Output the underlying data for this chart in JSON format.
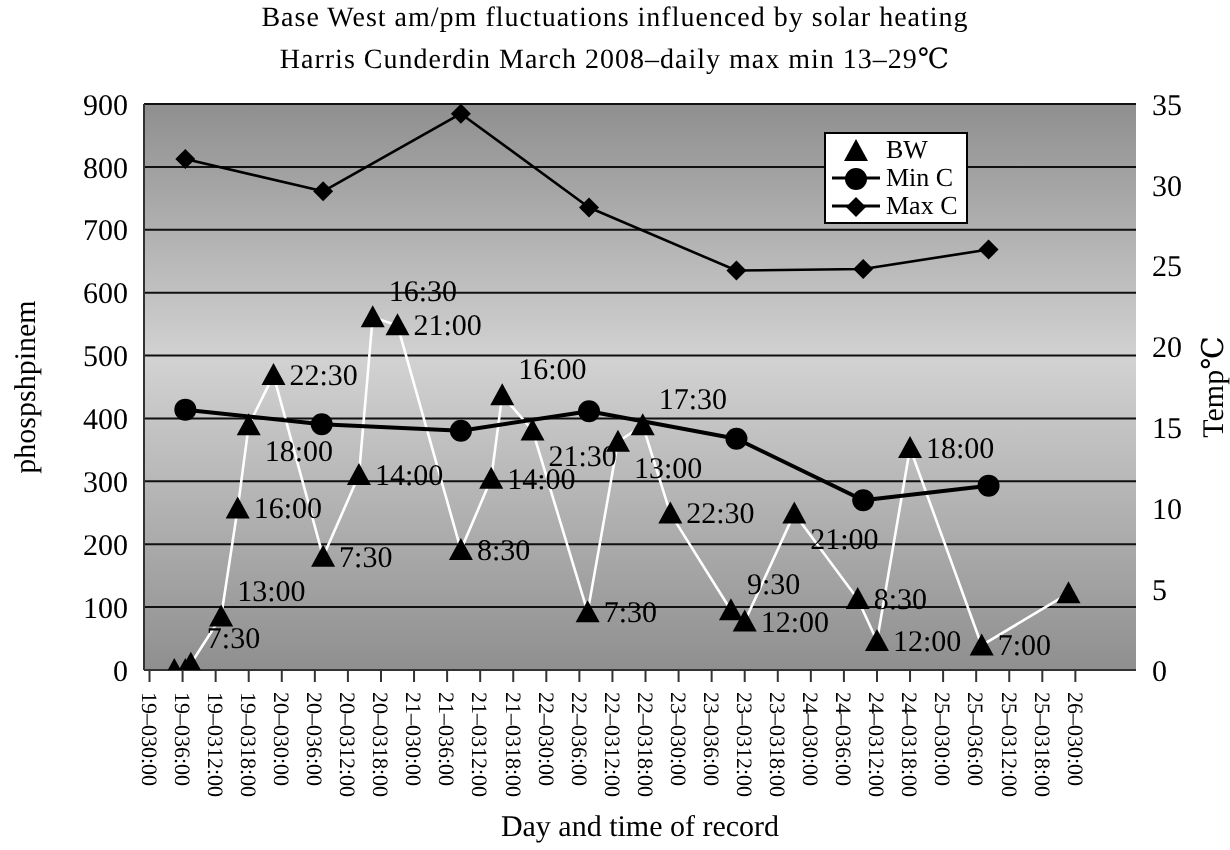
{
  "chart_data": {
    "type": "line",
    "title": "Base West am/pm fluctuations influenced by solar heating",
    "subtitle": "Harris Cunderdin March 2008–daily max min 13–29℃",
    "xlabel": "Day and time of record",
    "ylabel": "phospshpinem",
    "y2label": "Temp℃",
    "xlim": [
      "2008-03-18T23:00",
      "2008-03-26T11:00"
    ],
    "xticks": [
      {
        "value": "2008-03-19T00:00",
        "label": "19–030:00"
      },
      {
        "value": "2008-03-19T06:00",
        "label": "19–036:00"
      },
      {
        "value": "2008-03-19T12:00",
        "label": "19–0312:00"
      },
      {
        "value": "2008-03-19T18:00",
        "label": "19–0318:00"
      },
      {
        "value": "2008-03-20T00:00",
        "label": "20–030:00"
      },
      {
        "value": "2008-03-20T06:00",
        "label": "20–036:00"
      },
      {
        "value": "2008-03-20T12:00",
        "label": "20–0312:00"
      },
      {
        "value": "2008-03-20T18:00",
        "label": "20–0318:00"
      },
      {
        "value": "2008-03-21T00:00",
        "label": "21–030:00"
      },
      {
        "value": "2008-03-21T06:00",
        "label": "21–036:00"
      },
      {
        "value": "2008-03-21T12:00",
        "label": "21–0312:00"
      },
      {
        "value": "2008-03-21T18:00",
        "label": "21–0318:00"
      },
      {
        "value": "2008-03-22T00:00",
        "label": "22–030:00"
      },
      {
        "value": "2008-03-22T06:00",
        "label": "22–036:00"
      },
      {
        "value": "2008-03-22T12:00",
        "label": "22–0312:00"
      },
      {
        "value": "2008-03-22T18:00",
        "label": "22–0318:00"
      },
      {
        "value": "2008-03-23T00:00",
        "label": "23–030:00"
      },
      {
        "value": "2008-03-23T06:00",
        "label": "23–036:00"
      },
      {
        "value": "2008-03-23T12:00",
        "label": "23–0312:00"
      },
      {
        "value": "2008-03-23T18:00",
        "label": "23–0318:00"
      },
      {
        "value": "2008-03-24T00:00",
        "label": "24–030:00"
      },
      {
        "value": "2008-03-24T06:00",
        "label": "24–036:00"
      },
      {
        "value": "2008-03-24T12:00",
        "label": "24–0312:00"
      },
      {
        "value": "2008-03-24T18:00",
        "label": "24–0318:00"
      },
      {
        "value": "2008-03-25T00:00",
        "label": "25–030:00"
      },
      {
        "value": "2008-03-25T06:00",
        "label": "25–036:00"
      },
      {
        "value": "2008-03-25T12:00",
        "label": "25–0312:00"
      },
      {
        "value": "2008-03-25T18:00",
        "label": "25–0318:00"
      },
      {
        "value": "2008-03-26T00:00",
        "label": "26–030:00"
      }
    ],
    "ylim": [
      0,
      900
    ],
    "yticks": [
      0,
      100,
      200,
      300,
      400,
      500,
      600,
      700,
      800,
      900
    ],
    "y2lim": [
      0,
      35
    ],
    "y2ticks": [
      0,
      5,
      10,
      15,
      20,
      25,
      30,
      35
    ],
    "grid": "y",
    "legend": "top right",
    "series": [
      {
        "name": "BW",
        "color": "#ffffff",
        "marker": "triangle",
        "x": [
          "2008-03-19T04:30",
          "2008-03-19T06:30",
          "2008-03-19T07:30",
          "2008-03-19T13:00",
          "2008-03-19T16:00",
          "2008-03-19T18:00",
          "2008-03-19T22:30",
          "2008-03-20T07:30",
          "2008-03-20T14:00",
          "2008-03-20T16:30",
          "2008-03-20T21:00",
          "2008-03-21T08:30",
          "2008-03-21T14:00",
          "2008-03-21T16:00",
          "2008-03-21T21:30",
          "2008-03-22T07:30",
          "2008-03-22T13:00",
          "2008-03-22T17:30",
          "2008-03-22T22:30",
          "2008-03-23T09:30",
          "2008-03-23T12:00",
          "2008-03-23T21:00",
          "2008-03-24T08:30",
          "2008-03-24T12:00",
          "2008-03-24T18:00",
          "2008-03-25T07:00",
          "2008-03-25T22:45"
        ],
        "values": [
          0,
          0,
          10,
          85,
          257,
          389,
          469,
          180,
          310,
          561,
          548,
          191,
          304,
          437,
          381,
          92,
          363,
          389,
          249,
          95,
          77,
          249,
          113,
          46,
          353,
          39,
          122
        ]
      },
      {
        "name": "Min C",
        "color": "#000000",
        "marker": "circle",
        "axis": "y2",
        "x": [
          "2008-03-19T06:30",
          "2008-03-20T07:15",
          "2008-03-21T08:30",
          "2008-03-22T07:45",
          "2008-03-23T10:30",
          "2008-03-24T09:30",
          "2008-03-25T08:15"
        ],
        "values": [
          16.1,
          15.2,
          14.8,
          16.0,
          14.3,
          10.5,
          11.4
        ]
      },
      {
        "name": "Max C",
        "color": "#000000",
        "marker": "diamond",
        "axis": "y2",
        "x": [
          "2008-03-19T06:30",
          "2008-03-20T07:30",
          "2008-03-21T08:30",
          "2008-03-22T07:45",
          "2008-03-23T10:30",
          "2008-03-24T09:30",
          "2008-03-25T08:15"
        ],
        "values": [
          31.6,
          29.6,
          34.4,
          28.6,
          24.7,
          24.8,
          26.0
        ]
      }
    ],
    "annotations": [
      {
        "text": "7:30",
        "x": "2008-03-19T07:30",
        "y": 10
      },
      {
        "text": "13:00",
        "x": "2008-03-19T13:00",
        "y": 85
      },
      {
        "text": "16:00",
        "x": "2008-03-19T16:00",
        "y": 257
      },
      {
        "text": "18:00",
        "x": "2008-03-19T18:00",
        "y": 389
      },
      {
        "text": "22:30",
        "x": "2008-03-19T22:30",
        "y": 469
      },
      {
        "text": "7:30",
        "x": "2008-03-20T07:30",
        "y": 180
      },
      {
        "text": "14:00",
        "x": "2008-03-20T14:00",
        "y": 310
      },
      {
        "text": "16:30",
        "x": "2008-03-20T16:30",
        "y": 561
      },
      {
        "text": "21:00",
        "x": "2008-03-20T21:00",
        "y": 548
      },
      {
        "text": "8:30",
        "x": "2008-03-21T08:30",
        "y": 191
      },
      {
        "text": "14:00",
        "x": "2008-03-21T14:00",
        "y": 304
      },
      {
        "text": "16:00",
        "x": "2008-03-21T16:00",
        "y": 437
      },
      {
        "text": "21:30",
        "x": "2008-03-21T21:30",
        "y": 381
      },
      {
        "text": "7:30",
        "x": "2008-03-22T07:30",
        "y": 92
      },
      {
        "text": "13:00",
        "x": "2008-03-22T13:00",
        "y": 363
      },
      {
        "text": "17:30",
        "x": "2008-03-22T17:30",
        "y": 389
      },
      {
        "text": "22:30",
        "x": "2008-03-22T22:30",
        "y": 249
      },
      {
        "text": "9:30",
        "x": "2008-03-23T09:30",
        "y": 95
      },
      {
        "text": "12:00",
        "x": "2008-03-23T12:00",
        "y": 77
      },
      {
        "text": "21:00",
        "x": "2008-03-23T21:00",
        "y": 249
      },
      {
        "text": "8:30",
        "x": "2008-03-24T08:30",
        "y": 113
      },
      {
        "text": "12:00",
        "x": "2008-03-24T12:00",
        "y": 46
      },
      {
        "text": "18:00",
        "x": "2008-03-24T18:00",
        "y": 353
      },
      {
        "text": "7:00",
        "x": "2008-03-25T07:00",
        "y": 39
      }
    ]
  }
}
